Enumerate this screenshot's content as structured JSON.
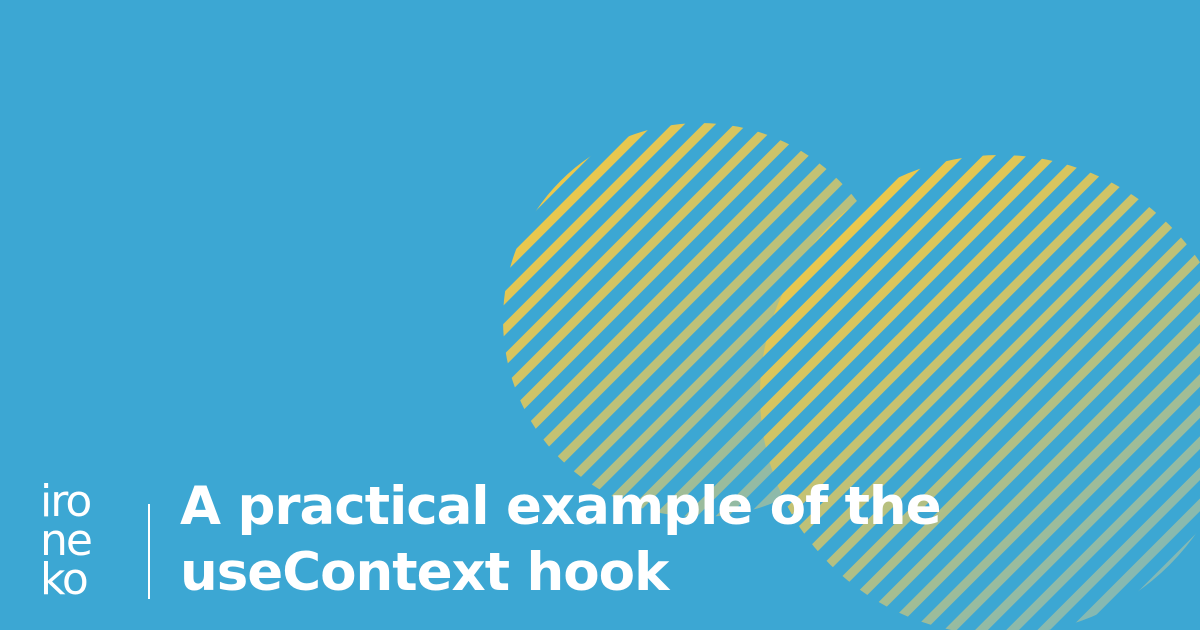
{
  "brand": {
    "logo_lines": [
      "iro",
      "ne",
      "ko"
    ]
  },
  "article": {
    "title_lines": [
      "A practical example of the",
      "useContext hook"
    ]
  },
  "colors": {
    "background": "#3ca7d3",
    "stripe_yellow": "#f3c944",
    "stripe_fade": "#7fb8b9",
    "text": "#ffffff"
  },
  "decorations": {
    "shape": "diagonal-striped circles",
    "count": 2
  }
}
